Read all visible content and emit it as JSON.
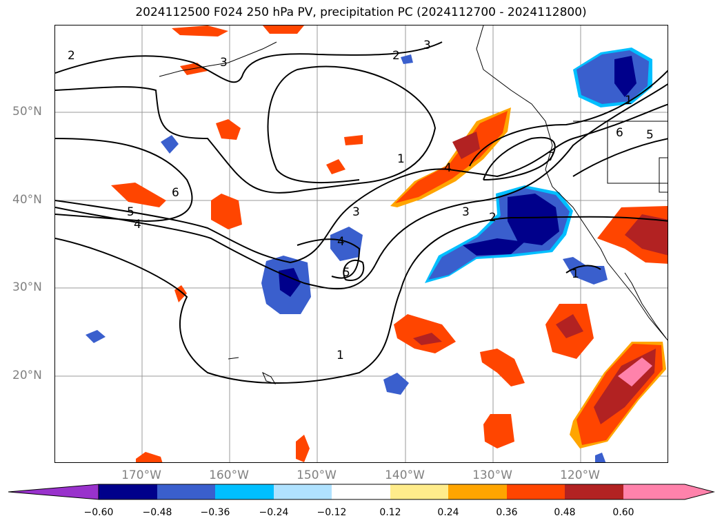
{
  "title": "2024112500 F024 250 hPa PV, precipitation PC (2024112700 - 2024112800)",
  "map": {
    "lat_labels": [
      "50°N",
      "40°N",
      "30°N",
      "20°N"
    ],
    "lon_labels": [
      "170°W",
      "160°W",
      "150°W",
      "140°W",
      "130°W",
      "120°W"
    ],
    "contour_labels": [
      "2",
      "2",
      "3",
      "3",
      "6",
      "5",
      "4",
      "1",
      "4",
      "3",
      "3",
      "2",
      "4",
      "5",
      "1",
      "7",
      "6",
      "5",
      "1",
      "1"
    ],
    "shading": {
      "negative_colors": [
        "#9932cc",
        "#00008b",
        "#3a5fcd",
        "#00bfff",
        "#b0e2ff"
      ],
      "positive_colors": [
        "#ffec8b",
        "#ffa500",
        "#ff4500",
        "#b22222",
        "#ff82ab"
      ]
    }
  },
  "colorbar": {
    "ticks": [
      "−0.60",
      "−0.48",
      "−0.36",
      "−0.24",
      "−0.12",
      "0.12",
      "0.24",
      "0.36",
      "0.48",
      "0.60"
    ],
    "colors": [
      "#9932cc",
      "#00008b",
      "#3a5fcd",
      "#00bfff",
      "#b0e2ff",
      "#ffffff",
      "#ffec8b",
      "#ffa500",
      "#ff4500",
      "#b22222",
      "#ff82ab"
    ]
  }
}
